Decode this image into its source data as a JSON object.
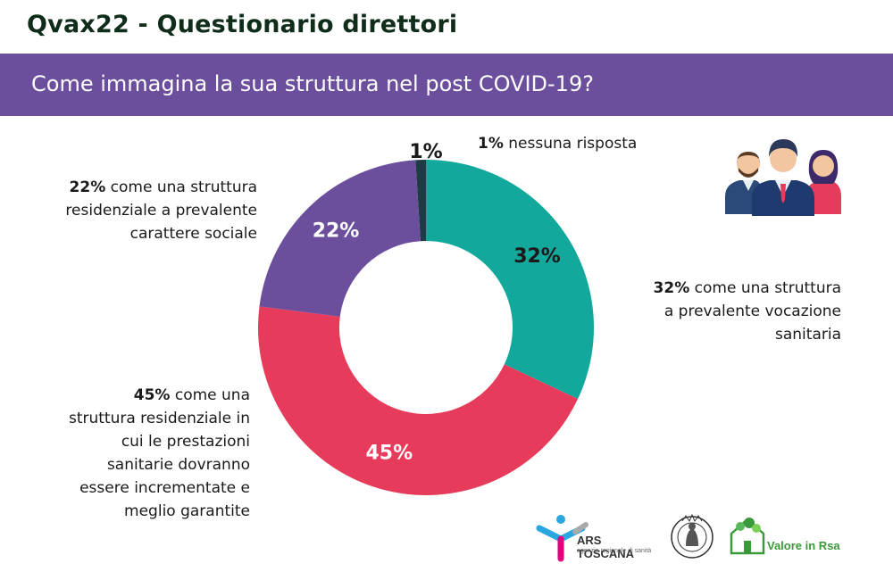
{
  "header": {
    "title": "Qvax22 - Questionario direttori",
    "question": "Come immagina la sua struttura nel post COVID-19?"
  },
  "chart_data": {
    "type": "pie",
    "variant": "donut",
    "categories": [
      "nessuna risposta",
      "come una struttura a prevalente vocazione sanitaria",
      "come una struttura residenziale in cui le prestazioni sanitarie dovranno essere incrementate e meglio garantite",
      "come una struttura residenziale a prevalente carattere sociale"
    ],
    "values": [
      1,
      32,
      45,
      22
    ],
    "value_labels": [
      "1%",
      "32%",
      "45%",
      "22%"
    ],
    "colors": [
      "#1f3b45",
      "#12a89b",
      "#e63b5a",
      "#6b4f9d"
    ],
    "label_colors": [
      "#1a1a1a",
      "#1a1a1a",
      "#ffffff",
      "#ffffff"
    ]
  },
  "annotations": [
    {
      "pct": "1%",
      "lines": [
        "nessuna risposta"
      ]
    },
    {
      "pct": "32%",
      "lines": [
        "come una struttura",
        "a prevalente vocazione",
        "sanitaria"
      ]
    },
    {
      "pct": "45%",
      "lines": [
        "come una",
        "struttura residenziale in",
        "cui le prestazioni",
        "sanitarie dovranno",
        "essere incrementate e",
        "meglio garantite"
      ]
    },
    {
      "pct": "22%",
      "lines": [
        "come una struttura",
        "residenziale a prevalente",
        "carattere sociale"
      ]
    }
  ],
  "logos": {
    "ars_name": "ARS TOSCANA",
    "ars_sub": "agenzia regionale di sanità",
    "unifi_text": "FLORENTINA STUDIORUM UNIVERSITAS",
    "rsa_name": "Valore in Rsa"
  },
  "icons": [
    "people-group-icon"
  ]
}
